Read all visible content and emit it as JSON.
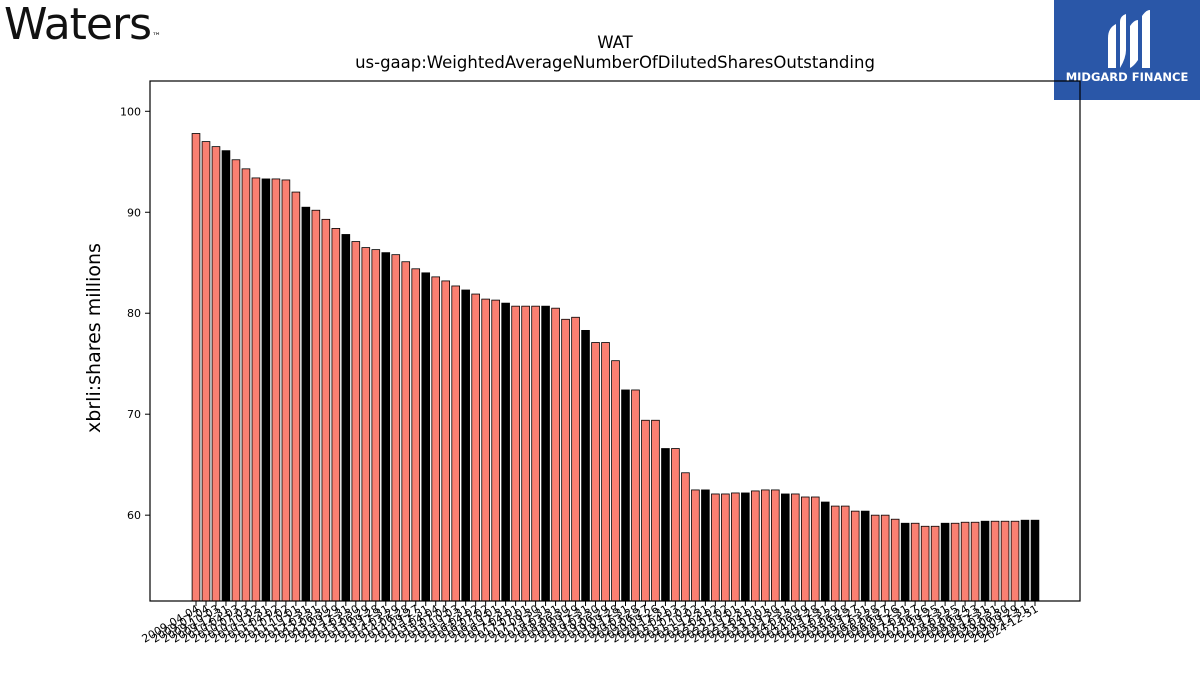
{
  "branding": {
    "left_logo": "Waters",
    "left_logo_tm": "™",
    "right_logo": "MIDGARD FINANCE"
  },
  "colors": {
    "salmon": "#fa8072",
    "black": "#000000",
    "midgard_blue": "#2a57a8"
  },
  "chart_data": {
    "type": "bar",
    "title": "WAT",
    "subtitle": "us-gaap:WeightedAverageNumberOfDilutedSharesOutstanding",
    "ylabel": "xbrli:shares  millions",
    "xlabel": "",
    "ylim": [
      51.5,
      103
    ],
    "yticks": [
      60,
      70,
      80,
      90,
      100
    ],
    "grid": false,
    "legend": "none",
    "categories": [
      "2009-04-04",
      "2009-07-04",
      "2009-10-03",
      "2009-12-31",
      "2010-04-03",
      "2010-07-03",
      "2010-10-02",
      "2010-12-31",
      "2011-04-02",
      "2011-07-02",
      "2011-10-01",
      "2011-12-31",
      "2012-03-31",
      "2012-06-30",
      "2012-09-29",
      "2012-12-31",
      "2013-03-30",
      "2013-06-29",
      "2013-09-28",
      "2013-12-31",
      "2014-03-29",
      "2014-06-28",
      "2014-09-27",
      "2014-12-31",
      "2015-04-04",
      "2015-07-04",
      "2015-10-03",
      "2015-12-31",
      "2016-04-02",
      "2016-07-02",
      "2016-10-01",
      "2016-12-31",
      "2017-04-01",
      "2017-07-01",
      "2017-09-30",
      "2017-12-31",
      "2018-03-31",
      "2018-06-30",
      "2018-09-29",
      "2018-12-31",
      "2019-03-30",
      "2019-06-29",
      "2019-09-28",
      "2019-12-31",
      "2020-03-28",
      "2020-06-27",
      "2020-09-26",
      "2020-12-31",
      "2021-04-03",
      "2021-07-03",
      "2021-10-02",
      "2021-12-31",
      "2022-04-02",
      "2022-07-02",
      "2022-10-01",
      "2022-12-31",
      "2023-04-01",
      "2023-07-01",
      "2023-09-30",
      "2023-12-31",
      "2024-03-30",
      "2024-06-29",
      "2024-09-28",
      "2024-12-31",
      "2025-03-29",
      "2025-06-28",
      "2025-09-27",
      "2025-12-31",
      "2026-03-28",
      "2026-06-27",
      "2026-09-26",
      "2026-12-31",
      "2027-03-27",
      "2027-06-26",
      "2027-09-25",
      "2027-12-31",
      "2028-03-25",
      "2028-06-24",
      "2028-09-23",
      "2028-12-31",
      "2029-03-31",
      "2029-06-30",
      "2029-09-29",
      "2029-12-31",
      "2024-12-31"
    ],
    "values": [
      97.8,
      97.0,
      96.5,
      96.1,
      95.2,
      94.3,
      93.4,
      93.3,
      93.3,
      93.2,
      92.0,
      90.5,
      90.2,
      89.3,
      88.4,
      87.8,
      87.1,
      86.5,
      86.3,
      86.0,
      85.8,
      85.1,
      84.4,
      84.0,
      83.6,
      83.2,
      82.7,
      82.3,
      81.9,
      81.4,
      81.3,
      81.0,
      80.7,
      80.7,
      80.7,
      80.7,
      80.5,
      79.4,
      79.6,
      78.3,
      77.1,
      77.1,
      75.3,
      72.4,
      72.4,
      69.4,
      69.4,
      66.6,
      66.6,
      64.2,
      62.5,
      62.5,
      62.1,
      62.1,
      62.2,
      62.2,
      62.4,
      62.5,
      62.5,
      62.1,
      62.1,
      61.8,
      61.8,
      61.3,
      60.9,
      60.9,
      60.4,
      60.4,
      60.0,
      60.0,
      59.6,
      59.2,
      59.2,
      58.9,
      58.9,
      59.2,
      59.2,
      59.3,
      59.3,
      59.4,
      59.4,
      59.4,
      59.4,
      59.5,
      59.5
    ],
    "q4_flags": [
      false,
      false,
      false,
      true,
      false,
      false,
      false,
      true,
      false,
      false,
      false,
      true,
      false,
      false,
      false,
      true,
      false,
      false,
      false,
      true,
      false,
      false,
      false,
      true,
      false,
      false,
      false,
      true,
      false,
      false,
      false,
      true,
      false,
      false,
      false,
      true,
      false,
      false,
      false,
      true,
      false,
      false,
      false,
      true,
      false,
      false,
      false,
      true,
      false,
      false,
      false,
      true,
      false,
      false,
      false,
      true,
      false,
      false,
      false,
      true,
      false,
      false,
      false,
      true,
      false,
      false,
      false,
      true,
      false,
      false,
      false,
      true,
      false,
      false,
      false,
      true,
      false,
      false,
      false,
      true,
      false,
      false,
      false,
      true,
      true
    ],
    "series": [
      {
        "name": "",
        "color": "#fa8072"
      }
    ]
  }
}
